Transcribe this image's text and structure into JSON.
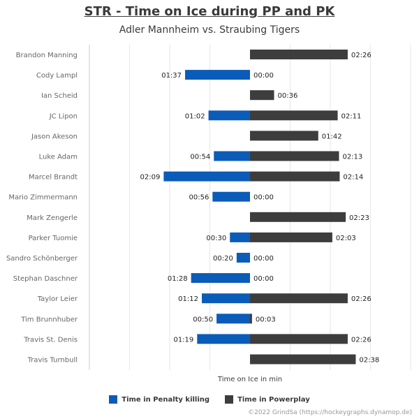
{
  "chart_data": {
    "type": "bar",
    "orientation": "horizontal-diverging",
    "title": "STR - Time on Ice during PP and PK",
    "subtitle": "Adler Mannheim vs. Straubing Tigers",
    "xlabel": "Time on Ice in min",
    "categories": [
      "Brandon Manning",
      "Cody Lampl",
      "Ian Scheid",
      "JC Lipon",
      "Jason Akeson",
      "Luke Adam",
      "Marcel Brandt",
      "Mario Zimmermann",
      "Mark Zengerle",
      "Parker Tuomie",
      "Sandro Schönberger",
      "Stephan Daschner",
      "Taylor Leier",
      "Tim Brunnhuber",
      "Travis St. Denis",
      "Travis Turnbull"
    ],
    "series": [
      {
        "name": "Time in Penalty killing",
        "color": "#0a5cb8",
        "side": "left",
        "values": [
          null,
          97,
          null,
          62,
          null,
          54,
          129,
          56,
          null,
          30,
          20,
          88,
          72,
          50,
          79,
          null
        ],
        "labels": [
          "",
          "01:37",
          "",
          "01:02",
          "",
          "00:54",
          "02:09",
          "00:56",
          "",
          "00:30",
          "00:20",
          "01:28",
          "01:12",
          "00:50",
          "01:19",
          ""
        ]
      },
      {
        "name": "Time in Powerplay",
        "color": "#3d3d3d",
        "side": "right",
        "values": [
          146,
          0,
          36,
          131,
          102,
          133,
          134,
          0,
          143,
          123,
          0,
          0,
          146,
          3,
          146,
          158
        ],
        "labels": [
          "02:26",
          "00:00",
          "00:36",
          "02:11",
          "01:42",
          "02:13",
          "02:14",
          "00:00",
          "02:23",
          "02:03",
          "00:00",
          "00:00",
          "02:26",
          "00:03",
          "02:26",
          "02:38"
        ]
      }
    ],
    "xlim_seconds": [
      -240,
      240
    ],
    "grid": true,
    "legend_position": "bottom"
  },
  "credit": "©2022 GrindSa (https://hockeygraphs.dynamop.de)"
}
